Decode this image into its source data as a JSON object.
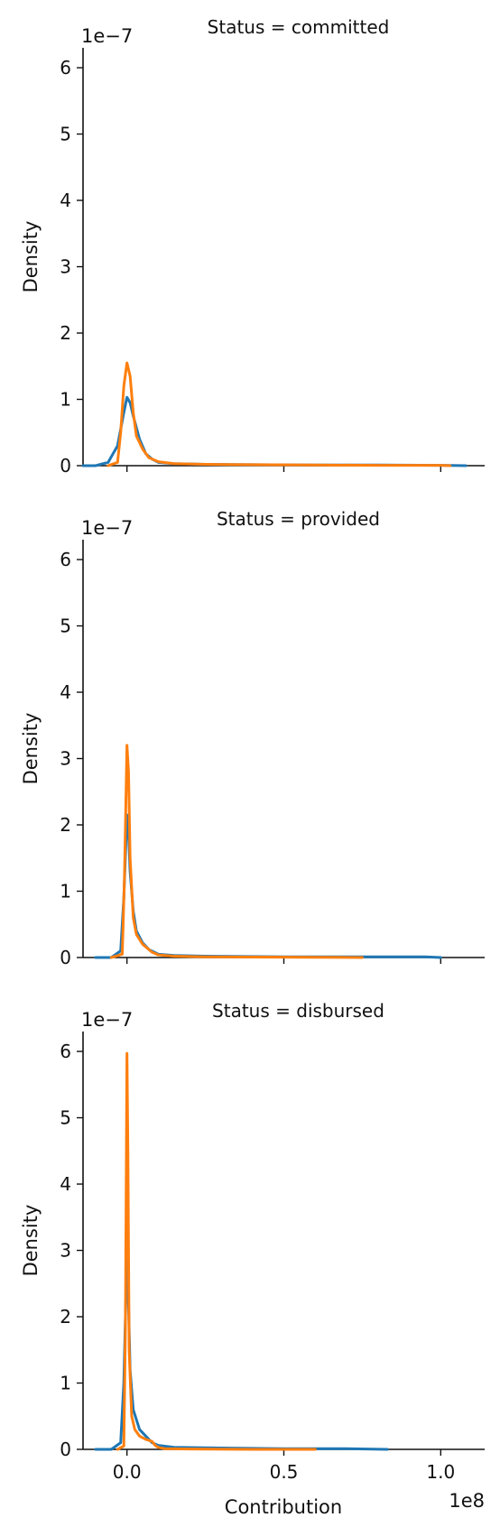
{
  "chart_data": {
    "type": "line",
    "subtype": "kde-facet-grid",
    "xlabel": "Contribution",
    "ylabel": "Density",
    "x_offset_label": "1e8",
    "y_offset_label": "1e−7",
    "xlim": [
      -0.14,
      1.14
    ],
    "ylim": [
      0,
      6.3
    ],
    "x_ticks": [
      0.0,
      0.5,
      1.0
    ],
    "x_tick_labels": [
      "0.0",
      "0.5",
      "1.0"
    ],
    "y_ticks": [
      0,
      1,
      2,
      3,
      4,
      5,
      6
    ],
    "y_tick_labels": [
      "0",
      "1",
      "2",
      "3",
      "4",
      "5",
      "6"
    ],
    "grid": false,
    "colors": [
      "#1f77b4",
      "#ff7f0e"
    ],
    "panels": [
      {
        "title": "Status = committed",
        "series": [
          {
            "color": "#1f77b4",
            "x": [
              -0.14,
              -0.1,
              -0.06,
              -0.03,
              -0.01,
              0.0,
              0.01,
              0.02,
              0.04,
              0.06,
              0.08,
              0.1,
              0.15,
              0.25,
              0.4,
              0.6,
              0.8,
              1.0,
              1.08
            ],
            "y": [
              0.0,
              0.0,
              0.05,
              0.3,
              0.8,
              1.03,
              0.95,
              0.75,
              0.4,
              0.18,
              0.1,
              0.05,
              0.03,
              0.02,
              0.015,
              0.01,
              0.01,
              0.005,
              0.0
            ]
          },
          {
            "color": "#ff7f0e",
            "x": [
              -0.06,
              -0.03,
              -0.02,
              -0.01,
              0.0,
              0.01,
              0.02,
              0.03,
              0.05,
              0.07,
              0.1,
              0.15,
              0.25,
              0.4,
              0.6,
              0.8,
              1.0,
              1.03
            ],
            "y": [
              0.0,
              0.05,
              0.5,
              1.2,
              1.55,
              1.35,
              0.8,
              0.45,
              0.25,
              0.12,
              0.06,
              0.03,
              0.02,
              0.015,
              0.01,
              0.005,
              0.005,
              0.0
            ]
          }
        ]
      },
      {
        "title": "Status = provided",
        "series": [
          {
            "color": "#1f77b4",
            "x": [
              -0.1,
              -0.05,
              -0.02,
              -0.01,
              0.0,
              0.005,
              0.01,
              0.02,
              0.03,
              0.05,
              0.07,
              0.1,
              0.15,
              0.25,
              0.5,
              0.75,
              0.95,
              1.0
            ],
            "y": [
              0.0,
              0.0,
              0.1,
              0.9,
              2.15,
              1.9,
              1.3,
              0.7,
              0.4,
              0.22,
              0.12,
              0.05,
              0.03,
              0.02,
              0.01,
              0.01,
              0.01,
              0.0
            ]
          },
          {
            "color": "#ff7f0e",
            "x": [
              -0.05,
              -0.015,
              -0.008,
              0.0,
              0.005,
              0.01,
              0.02,
              0.03,
              0.05,
              0.08,
              0.1,
              0.15,
              0.25,
              0.5,
              0.75
            ],
            "y": [
              0.0,
              0.05,
              1.2,
              3.2,
              2.8,
              1.5,
              0.6,
              0.35,
              0.2,
              0.08,
              0.04,
              0.02,
              0.01,
              0.005,
              0.0
            ]
          }
        ]
      },
      {
        "title": "Status = disbursed",
        "series": [
          {
            "color": "#1f77b4",
            "x": [
              -0.1,
              -0.05,
              -0.02,
              -0.01,
              0.0,
              0.005,
              0.01,
              0.02,
              0.04,
              0.06,
              0.08,
              0.1,
              0.15,
              0.3,
              0.5,
              0.7,
              0.83
            ],
            "y": [
              0.0,
              0.0,
              0.1,
              1.0,
              2.95,
              2.2,
              1.2,
              0.6,
              0.3,
              0.2,
              0.1,
              0.06,
              0.03,
              0.02,
              0.01,
              0.01,
              0.0
            ]
          },
          {
            "color": "#ff7f0e",
            "x": [
              -0.03,
              -0.01,
              -0.005,
              0.0,
              0.003,
              0.007,
              0.015,
              0.025,
              0.04,
              0.06,
              0.08,
              0.09,
              0.1,
              0.12,
              0.2,
              0.4,
              0.6
            ],
            "y": [
              0.0,
              0.05,
              1.8,
              5.97,
              4.5,
              1.5,
              0.5,
              0.3,
              0.2,
              0.15,
              0.12,
              0.06,
              0.03,
              0.01,
              0.005,
              0.0,
              0.0
            ]
          }
        ]
      }
    ]
  }
}
